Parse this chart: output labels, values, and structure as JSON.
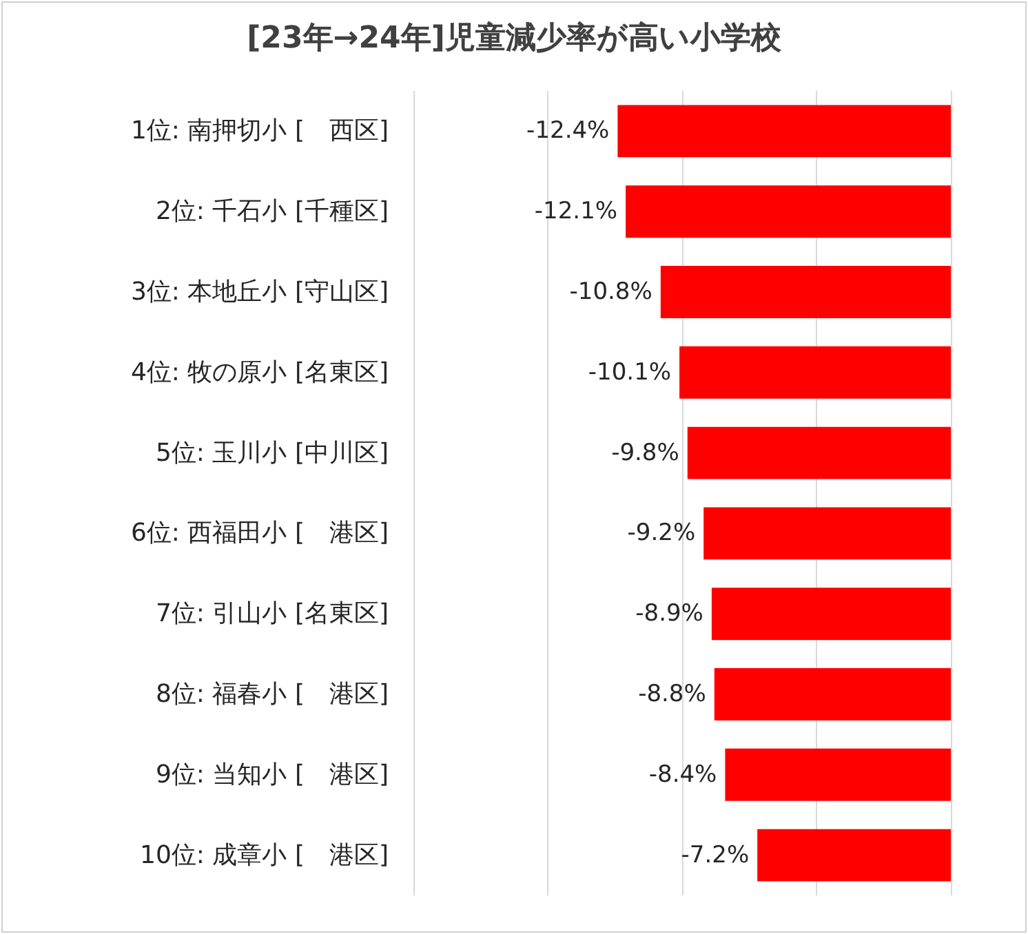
{
  "chart_data": {
    "type": "bar",
    "orientation": "horizontal",
    "title": "[23年→24年]児童減少率が高い小学校",
    "categories": [
      "1位: 南押切小 [　西区]",
      "2位: 千石小 [千種区]",
      "3位: 本地丘小 [守山区]",
      "4位: 牧の原小 [名東区]",
      "5位: 玉川小 [中川区]",
      "6位: 西福田小 [　港区]",
      "7位: 引山小 [名東区]",
      "8位: 福春小 [　港区]",
      "9位: 当知小 [　港区]",
      "10位: 成章小 [　港区]"
    ],
    "values": [
      -12.4,
      -12.1,
      -10.8,
      -10.1,
      -9.8,
      -9.2,
      -8.9,
      -8.8,
      -8.4,
      -7.2
    ],
    "value_labels": [
      "-12.4%",
      "-12.1%",
      "-10.8%",
      "-10.1%",
      "-9.8%",
      "-9.2%",
      "-8.9%",
      "-8.8%",
      "-8.4%",
      "-7.2%"
    ],
    "color": "#ff0000",
    "xlim": [
      -20,
      0
    ],
    "xticks": [
      {
        "value": -20,
        "label": null
      },
      {
        "value": -15,
        "label": null
      },
      {
        "value": -10,
        "label": null
      },
      {
        "value": -5,
        "label": null
      },
      {
        "value": 0,
        "label": null
      }
    ],
    "tick_labels": "y",
    "grid": "x"
  }
}
